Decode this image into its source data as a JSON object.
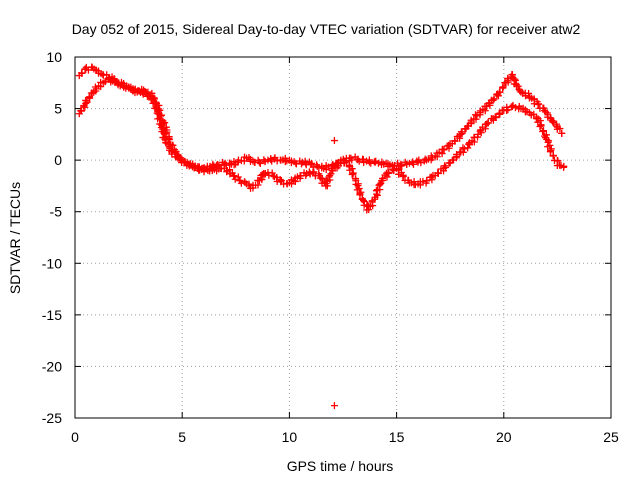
{
  "chart_data": {
    "type": "scatter",
    "title": "Day 052 of 2015, Sidereal Day-to-day VTEC variation (SDTVAR) for receiver atw2",
    "xlabel": "GPS time / hours",
    "ylabel": "SDTVAR / TECUs",
    "xlim": [
      0,
      25
    ],
    "ylim": [
      -25,
      10
    ],
    "xticks": [
      0,
      5,
      10,
      15,
      20,
      25
    ],
    "yticks": [
      10,
      5,
      0,
      -5,
      -10,
      -15,
      -20,
      -25
    ],
    "xtick_labels": [
      "0",
      "5",
      "10",
      "15",
      "20",
      "25"
    ],
    "ytick_labels": [
      "10",
      "5",
      "0",
      "-5",
      "-10",
      "-15",
      "-20",
      "-25"
    ],
    "grid": true,
    "marker": "+",
    "color": "#ff0000",
    "series": [
      {
        "name": "upper track",
        "x": [
          0.2,
          0.5,
          0.8,
          1.0,
          1.3,
          1.6,
          1.9,
          2.2,
          2.5,
          2.8,
          3.0,
          3.2,
          3.4,
          3.6,
          3.8,
          4.0,
          4.2,
          4.5,
          4.8,
          5.1,
          5.4,
          5.7,
          6.0,
          6.3,
          6.6,
          7.0,
          7.3,
          7.6,
          8.0,
          8.3,
          8.6,
          9.0,
          9.3,
          9.6,
          10.0,
          10.3,
          10.6,
          11.0,
          11.3,
          11.6,
          12.0,
          12.4,
          12.8,
          13.2,
          13.6,
          14.0,
          14.4,
          14.8,
          15.2,
          15.6,
          16.0,
          16.4,
          16.8,
          17.2,
          17.6,
          18.0,
          18.3,
          18.6,
          18.9,
          19.2,
          19.5,
          19.8,
          20.1,
          20.4,
          20.6,
          20.8,
          21.0,
          21.3,
          21.6,
          21.9,
          22.2,
          22.5,
          22.7
        ],
        "y": [
          8.2,
          8.8,
          9.0,
          8.7,
          8.3,
          8.0,
          7.6,
          7.3,
          7.0,
          6.8,
          6.7,
          6.8,
          6.6,
          6.2,
          5.0,
          3.5,
          2.0,
          0.8,
          0.2,
          -0.2,
          -0.5,
          -0.8,
          -0.8,
          -0.6,
          -0.5,
          -0.3,
          -0.4,
          -0.2,
          0.2,
          -0.1,
          -0.2,
          0.0,
          0.1,
          0.0,
          0.0,
          -0.3,
          -0.2,
          -0.4,
          -0.6,
          -0.8,
          -0.5,
          -0.3,
          0.2,
          0.1,
          -0.1,
          -0.2,
          -0.4,
          -0.5,
          -0.4,
          -0.3,
          -0.2,
          0.0,
          0.4,
          1.0,
          1.6,
          2.5,
          3.3,
          4.0,
          4.6,
          5.2,
          5.8,
          6.6,
          7.5,
          8.3,
          7.2,
          6.6,
          6.5,
          6.0,
          5.4,
          4.8,
          4.0,
          3.2,
          2.6
        ]
      },
      {
        "name": "lower track",
        "x": [
          0.2,
          0.5,
          0.8,
          1.1,
          1.4,
          1.7,
          2.0,
          2.3,
          2.6,
          2.9,
          3.2,
          3.5,
          3.8,
          4.1,
          4.4,
          4.7,
          5.0,
          5.3,
          5.6,
          5.9,
          6.2,
          6.5,
          6.8,
          7.1,
          7.4,
          7.7,
          8.0,
          8.3,
          8.6,
          8.8,
          9.0,
          9.3,
          9.6,
          9.9,
          10.2,
          10.5,
          10.8,
          11.1,
          11.4,
          11.7,
          12.0,
          12.4,
          12.8,
          13.1,
          13.4,
          13.7,
          14.0,
          14.3,
          14.6,
          15.0,
          15.3,
          15.6,
          16.0,
          16.4,
          16.8,
          17.2,
          17.6,
          18.0,
          18.4,
          18.8,
          19.2,
          19.6,
          20.0,
          20.4,
          20.8,
          21.2,
          21.6,
          22.0,
          22.3,
          22.6,
          22.8
        ],
        "y": [
          4.5,
          5.5,
          6.5,
          7.2,
          7.6,
          7.8,
          7.5,
          7.2,
          6.9,
          6.6,
          6.5,
          6.2,
          5.5,
          3.8,
          2.0,
          0.6,
          0.0,
          -0.4,
          -0.7,
          -0.9,
          -1.0,
          -0.9,
          -0.8,
          -1.0,
          -1.5,
          -2.0,
          -2.3,
          -2.7,
          -2.0,
          -1.3,
          -1.2,
          -1.6,
          -2.1,
          -2.3,
          -2.0,
          -1.5,
          -1.3,
          -1.2,
          -1.5,
          -2.5,
          -1.0,
          0.0,
          -0.5,
          -2.0,
          -3.8,
          -4.8,
          -3.6,
          -2.0,
          -1.2,
          -0.8,
          -1.6,
          -2.2,
          -2.3,
          -2.0,
          -1.5,
          -0.8,
          0.0,
          0.8,
          1.5,
          2.5,
          3.5,
          4.2,
          4.8,
          5.2,
          5.0,
          4.6,
          4.0,
          2.0,
          0.4,
          -0.5,
          -0.6
        ]
      },
      {
        "name": "outliers",
        "x": [
          12.1,
          12.1
        ],
        "y": [
          1.9,
          -23.8
        ]
      }
    ]
  }
}
